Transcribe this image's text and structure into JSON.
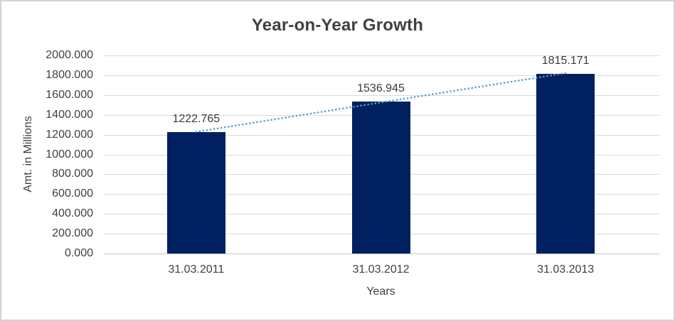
{
  "window": {
    "background": "#FFFFFF",
    "border_color": "#D3D3D3"
  },
  "chart_data": {
    "type": "bar",
    "title": "Year-on-Year Growth",
    "categories": [
      "31.03.2011",
      "31.03.2012",
      "31.03.2013"
    ],
    "values": [
      1222.765,
      1536.945,
      1815.171
    ],
    "data_labels": [
      "1222.765",
      "1536.945",
      "1815.171"
    ],
    "xlabel": "Years",
    "ylabel": "Amt. in Millions",
    "ylim": [
      0,
      2000
    ],
    "ytick_step": 200,
    "yticks": [
      "0.000",
      "200.000",
      "400.000",
      "600.000",
      "800.000",
      "1000.000",
      "1200.000",
      "1400.000",
      "1600.000",
      "1800.000",
      "2000.000"
    ],
    "grid": true,
    "legend": "none",
    "bar_color": "#002060",
    "trendline": {
      "type": "linear",
      "style": "dotted",
      "color": "#5B9BD5"
    },
    "colors": {
      "gridline": "#D9D9D9",
      "axis_line": "#C8C8C8",
      "tick_text": "#404040",
      "title_text": "#404040",
      "label_text": "#3A3A3A"
    }
  }
}
